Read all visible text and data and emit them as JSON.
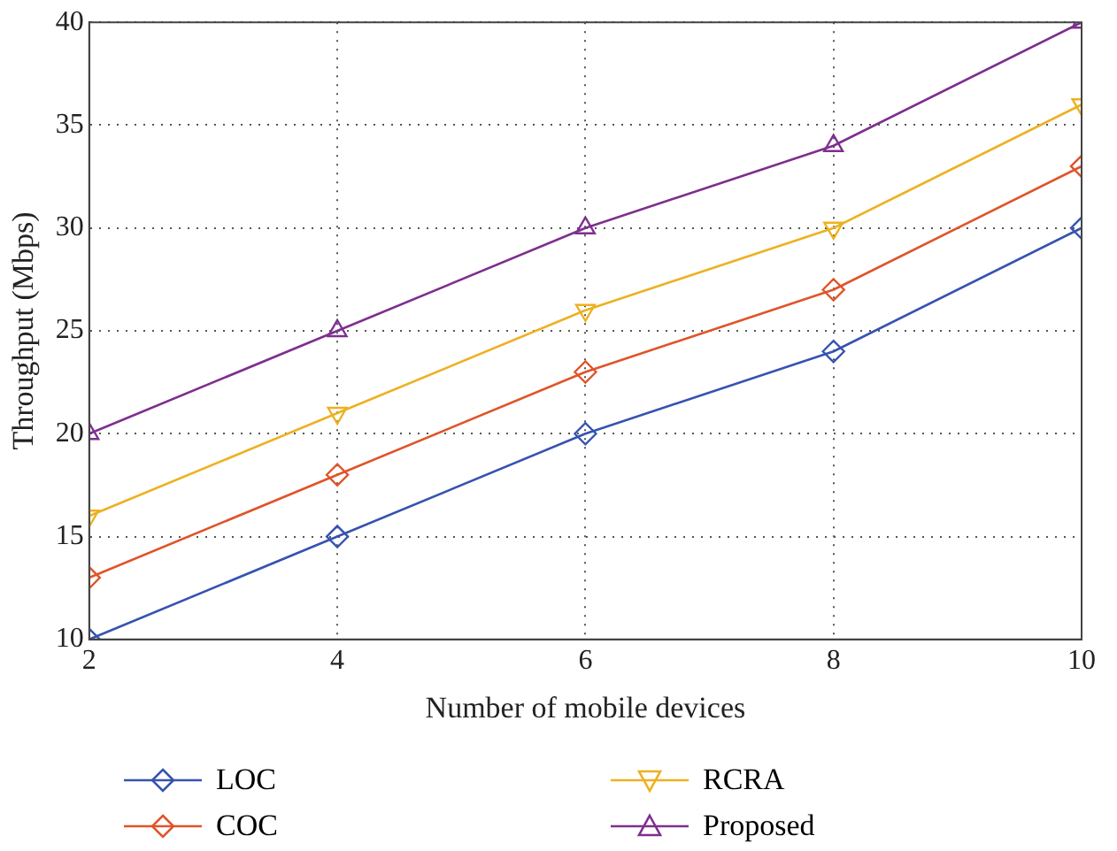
{
  "chart_data": {
    "type": "line",
    "xlabel": "Number of mobile devices",
    "ylabel": "Throughput (Mbps)",
    "x": [
      2,
      4,
      6,
      8,
      10
    ],
    "xlim": [
      2,
      10
    ],
    "xticks": [
      2,
      4,
      6,
      8,
      10
    ],
    "ylim": [
      10,
      40
    ],
    "yticks": [
      10,
      15,
      20,
      25,
      30,
      35,
      40
    ],
    "grid": true,
    "legend": "bottom",
    "line_style": "solid",
    "series": [
      {
        "name": "LOC",
        "color": "#3653b0",
        "marker": "diamond",
        "values": [
          10,
          15,
          20,
          24,
          30
        ]
      },
      {
        "name": "COC",
        "color": "#e0542a",
        "marker": "diamond",
        "values": [
          13,
          18,
          23,
          27,
          33
        ]
      },
      {
        "name": "RCRA",
        "color": "#edb120",
        "marker": "triangle-down",
        "values": [
          16,
          21,
          26,
          30,
          36
        ]
      },
      {
        "name": "Proposed",
        "color": "#7e2f8e",
        "marker": "triangle",
        "values": [
          20,
          25,
          30,
          34,
          40
        ]
      }
    ]
  }
}
